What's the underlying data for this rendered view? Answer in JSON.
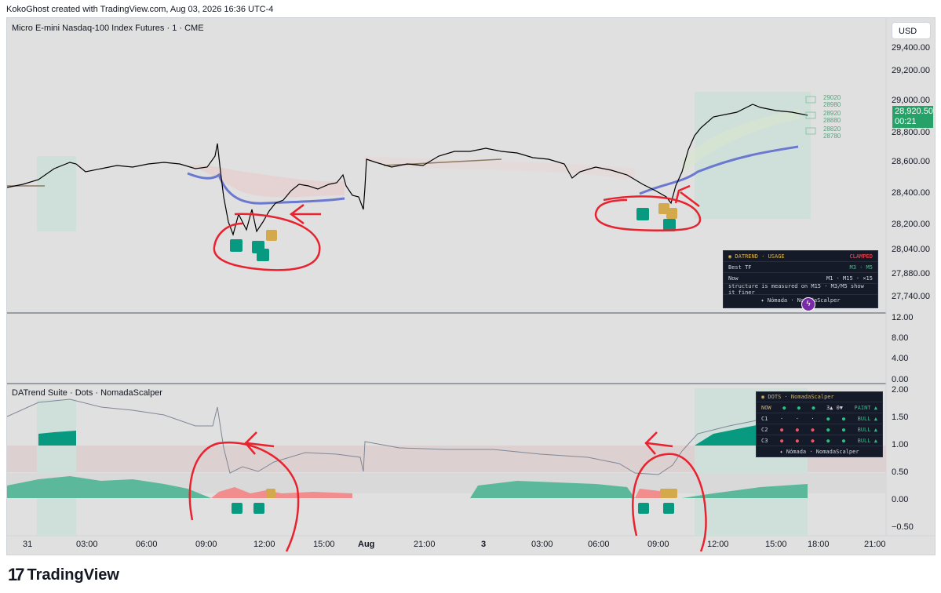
{
  "header": {
    "title": "KokoGhost created with TradingView.com, Aug 03, 2026 16:36 UTC-4"
  },
  "main_pane": {
    "title": "Micro E-mini Nasdaq-100 Index Futures · 1 · CME",
    "currency": "USD",
    "price_labels": [
      "29,400.00",
      "29,200.00",
      "29,000.00",
      "28,800.00",
      "28,600.00",
      "28,400.00",
      "28,200.00",
      "28,040.00",
      "27,880.00",
      "27,740.00"
    ],
    "last_price": "28,920.50",
    "countdown": "00:21",
    "level_labels": [
      "29020",
      "28980",
      "28920",
      "28880",
      "28820",
      "28780"
    ]
  },
  "volume_pane": {
    "labels": [
      "12.00",
      "8.00",
      "4.00",
      "0.00"
    ]
  },
  "osc_pane": {
    "title": "DATrend Suite · Dots · NomadaScalper",
    "labels": [
      "2.00",
      "1.50",
      "1.00",
      "0.50",
      "0.00",
      "−0.50"
    ]
  },
  "time_axis": {
    "labels": [
      "31",
      "03:00",
      "06:00",
      "09:00",
      "12:00",
      "15:00",
      "Aug",
      "21:00",
      "3",
      "03:00",
      "06:00",
      "09:00",
      "12:00",
      "15:00",
      "18:00",
      "21:00"
    ]
  },
  "usage_panel": {
    "header_left": "◉ DATREND · USAGE",
    "header_right": "CLAMPED",
    "best_tf_label": "Best TF",
    "best_tf_value": "M3  ·  M5",
    "now_label": "Now",
    "now_value": "M1  ·  M15  ·  ×15",
    "note": "structure is measured on M15 · M3/M5 show it finer",
    "footer": "✦ Nómada · NomadaScalper"
  },
  "dots_panel": {
    "header": "◉ DOTS · NomadaScalper",
    "rows": [
      {
        "label": "NOW",
        "dots": [
          "●",
          "●",
          "●"
        ],
        "extra": "3▲ 0▼",
        "status": "PAINT ▲"
      },
      {
        "label": "C1",
        "dots": [
          "·",
          "·",
          "·",
          "●",
          "●"
        ],
        "status": "BULL ▲"
      },
      {
        "label": "C2",
        "dots": [
          "●",
          "●",
          "●",
          "●",
          "●"
        ],
        "status": "BULL ▲"
      },
      {
        "label": "C3",
        "dots": [
          "●",
          "●",
          "●",
          "●",
          "●"
        ],
        "status": "BULL ▲"
      }
    ],
    "footer": "✦ Nómada · NomadaScalper"
  },
  "footer": {
    "brand": "TradingView"
  },
  "colors": {
    "bull": "#089981",
    "bear": "#f7525f",
    "signal": "#d4a94c",
    "annotation": "#e8232f",
    "ema": "#6b78d0"
  }
}
